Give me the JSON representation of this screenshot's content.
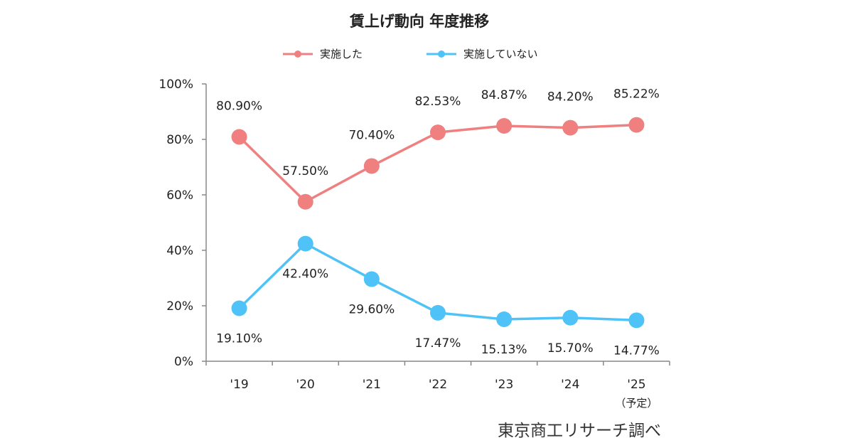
{
  "chart_data": {
    "type": "line",
    "title": "賃上げ動向 年度推移",
    "categories": [
      "'19",
      "'20",
      "'21",
      "'22",
      "'23",
      "'24",
      "'25"
    ],
    "category_notes": [
      "",
      "",
      "",
      "",
      "",
      "",
      "（予定）"
    ],
    "series": [
      {
        "name": "実施した",
        "color": "#f08080",
        "values": [
          80.9,
          57.5,
          70.4,
          82.53,
          84.87,
          84.2,
          85.22
        ],
        "labels": [
          "80.90%",
          "57.50%",
          "70.40%",
          "82.53%",
          "84.87%",
          "84.20%",
          "85.22%"
        ]
      },
      {
        "name": "実施していない",
        "color": "#4fc3f7",
        "values": [
          19.1,
          42.4,
          29.6,
          17.47,
          15.13,
          15.7,
          14.77
        ],
        "labels": [
          "19.10%",
          "42.40%",
          "29.60%",
          "17.47%",
          "15.13%",
          "15.70%",
          "14.77%"
        ]
      }
    ],
    "ylim": [
      0,
      100
    ],
    "yticks": [
      "0%",
      "20%",
      "40%",
      "60%",
      "80%",
      "100%"
    ],
    "ytick_values": [
      0,
      20,
      40,
      60,
      80,
      100
    ],
    "grid": false,
    "legend_position": "top",
    "source": "東京商工リサーチ調べ"
  }
}
